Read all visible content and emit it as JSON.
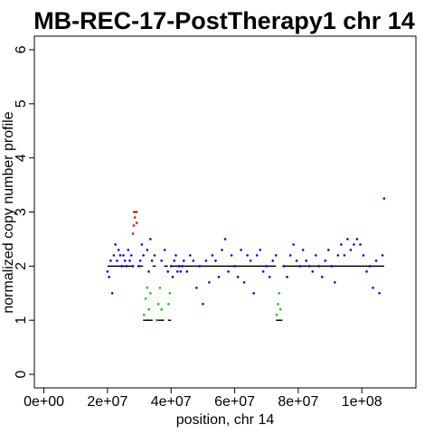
{
  "chart_data": {
    "type": "scatter",
    "title": "MB-REC-17-PostTherapy1 chr 14",
    "xlabel": "position, chr 14",
    "ylabel": "normalized copy number profile",
    "xlim": [
      -3000000.0,
      117000000.0
    ],
    "ylim": [
      -0.25,
      6.25
    ],
    "x_ticks": [
      0,
      20000000,
      40000000,
      60000000,
      80000000,
      100000000
    ],
    "x_tick_labels": [
      "0e+00",
      "2e+07",
      "4e+07",
      "6e+07",
      "8e+07",
      "1e+08"
    ],
    "y_ticks": [
      0,
      1,
      2,
      3,
      4,
      5,
      6
    ],
    "y_tick_labels": [
      "0",
      "1",
      "2",
      "3",
      "4",
      "5",
      "6"
    ],
    "grid": false,
    "colors": {
      "normal": "#0000ff",
      "gain": "#ff0000",
      "loss": "#00cc00",
      "segment": "#000000"
    },
    "segments": [
      {
        "x0": 20000000,
        "x1": 28000000,
        "value": 2.0
      },
      {
        "x0": 28000000,
        "x1": 29500000,
        "value": 3.0
      },
      {
        "x0": 29500000,
        "x1": 31200000,
        "value": 2.0
      },
      {
        "x0": 31200000,
        "x1": 34200000,
        "value": 1.0
      },
      {
        "x0": 34200000,
        "x1": 35200000,
        "value": 2.0
      },
      {
        "x0": 35200000,
        "x1": 37800000,
        "value": 1.0
      },
      {
        "x0": 37800000,
        "x1": 39000000,
        "value": 2.0
      },
      {
        "x0": 39000000,
        "x1": 40000000,
        "value": 1.0
      },
      {
        "x0": 40000000,
        "x1": 73000000,
        "value": 2.0
      },
      {
        "x0": 73000000,
        "x1": 75000000,
        "value": 1.0
      },
      {
        "x0": 75000000,
        "x1": 107000000,
        "value": 2.0
      }
    ],
    "series": [
      {
        "color": "blue",
        "x": [
          20000000,
          20500000,
          21000000,
          21500000,
          22000000,
          22500000,
          23000000,
          23500000,
          24000000,
          24500000,
          25000000,
          25500000,
          26000000,
          26500000,
          27000000,
          27500000,
          28000000,
          29800000,
          30300000,
          30800000,
          31300000,
          32500000,
          33000000,
          33500000,
          34000000,
          34800000,
          37000000,
          38000000,
          39000000,
          40000000,
          40500000,
          41000000,
          41500000,
          42000000,
          42500000,
          43000000,
          43500000,
          44000000,
          45000000,
          46000000,
          47000000,
          48000000,
          49000000,
          50000000,
          51000000,
          52000000,
          53000000,
          54000000,
          55000000,
          56000000,
          57000000,
          58000000,
          59000000,
          60000000,
          61000000,
          62000000,
          63000000,
          64000000,
          65000000,
          66000000,
          67000000,
          68000000,
          69000000,
          70000000,
          71000000,
          72000000,
          73000000,
          75500000,
          76500000,
          77500000,
          78500000,
          79500000,
          80500000,
          81500000,
          82500000,
          83500000,
          84500000,
          85500000,
          86500000,
          87500000,
          88500000,
          89500000,
          90500000,
          91500000,
          92500000,
          93500000,
          94500000,
          95500000,
          96500000,
          97500000,
          98500000,
          99500000,
          100500000,
          101500000,
          102500000,
          103500000,
          104500000,
          105500000,
          106500000,
          107000000
        ],
        "y": [
          1.9,
          1.8,
          2.1,
          1.5,
          2.2,
          2.4,
          2.1,
          2.3,
          2.2,
          2.0,
          2.2,
          2.1,
          2.0,
          2.3,
          2.1,
          2.2,
          2.0,
          2.0,
          2.1,
          2.4,
          2.2,
          2.3,
          1.9,
          2.5,
          2.1,
          2.2,
          2.1,
          2.3,
          1.9,
          2.0,
          1.8,
          2.1,
          2.2,
          1.9,
          2.0,
          1.9,
          2.0,
          2.1,
          1.9,
          2.2,
          2.1,
          1.6,
          2.0,
          1.3,
          2.1,
          1.7,
          2.2,
          2.1,
          1.8,
          2.3,
          2.5,
          1.9,
          2.2,
          2.0,
          1.8,
          2.3,
          1.7,
          2.2,
          2.1,
          1.5,
          2.2,
          2.3,
          1.9,
          2.0,
          1.8,
          2.1,
          2.2,
          2.0,
          1.8,
          2.2,
          2.4,
          2.1,
          2.0,
          2.3,
          2.1,
          2.0,
          1.9,
          2.2,
          2.0,
          1.8,
          2.1,
          2.3,
          2.0,
          1.7,
          2.2,
          2.4,
          2.2,
          2.5,
          2.3,
          2.4,
          2.5,
          2.4,
          2.2,
          1.9,
          2.0,
          1.6,
          2.1,
          1.5,
          2.2,
          3.25
        ]
      },
      {
        "color": "red",
        "x": [
          28000000,
          28300000,
          28600000,
          28900000,
          29200000
        ],
        "y": [
          2.6,
          2.75,
          2.9,
          3.0,
          2.8
        ]
      },
      {
        "color": "green",
        "x": [
          31500000,
          32000000,
          32500000,
          33000000,
          33500000,
          35500000,
          36000000,
          36500000,
          37000000,
          39200000,
          39600000,
          73200000,
          73600000,
          74000000,
          74400000
        ],
        "y": [
          1.1,
          1.4,
          1.6,
          1.2,
          1.5,
          1.0,
          1.3,
          1.6,
          1.2,
          1.3,
          1.5,
          1.1,
          1.3,
          1.5,
          1.2
        ]
      }
    ]
  }
}
